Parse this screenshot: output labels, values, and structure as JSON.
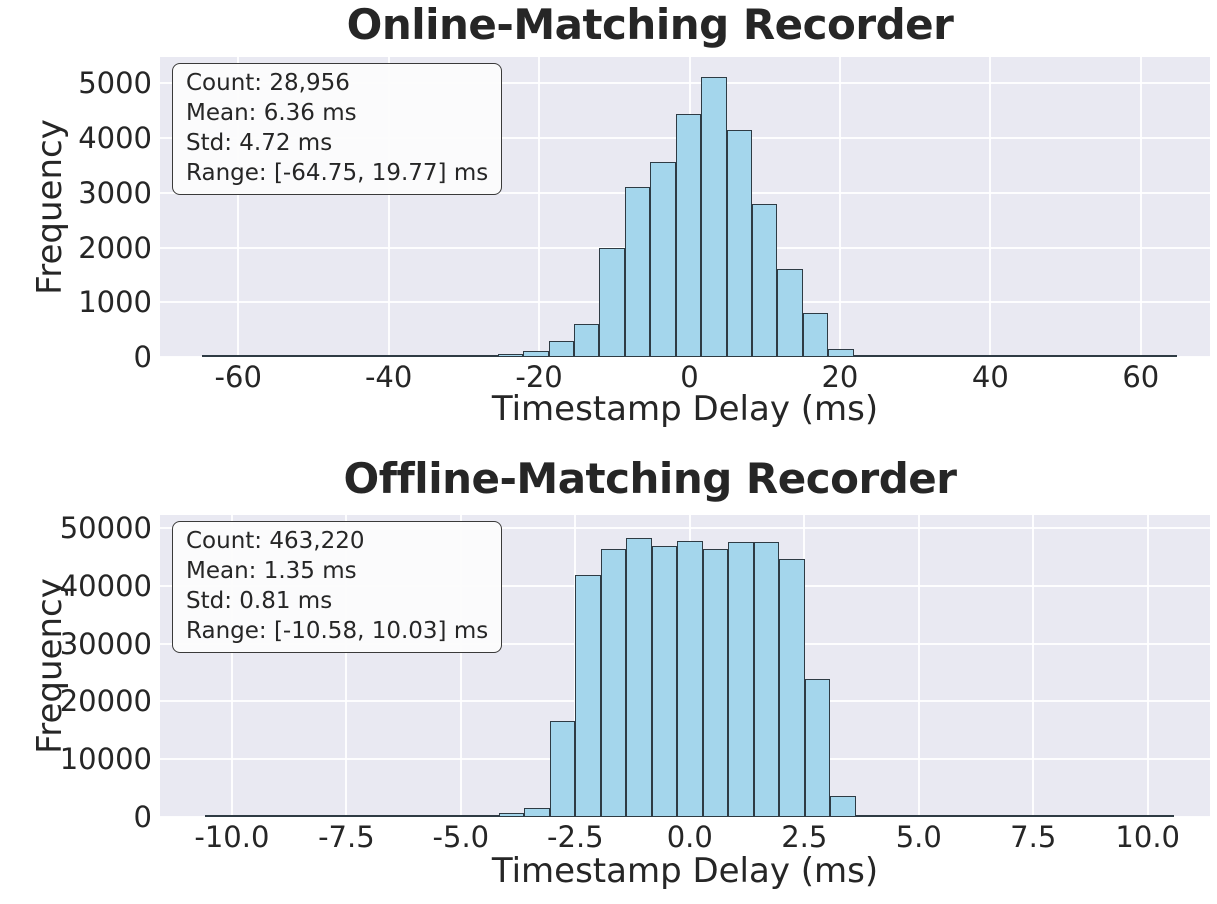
{
  "colors": {
    "bar_fill": "#a4d6ec",
    "bar_edge": "#2e3b44",
    "plot_background": "#e9e9f2",
    "gridline": "#ffffff",
    "text": "#262626",
    "stats_box_background": "#fcfcfc",
    "stats_box_border": "#3a3a3a",
    "figure_background": "#ffffff"
  },
  "chart_data": [
    {
      "type": "bar",
      "subtype": "histogram",
      "title": "Online-Matching Recorder",
      "xlabel": "Timestamp Delay (ms)",
      "ylabel": "Frequency",
      "stats": {
        "count": 28956,
        "mean_ms": 6.36,
        "std_ms": 4.72,
        "range_ms": [
          -64.75,
          19.77
        ]
      },
      "stats_text": [
        "Count: 28,956",
        "Mean: 6.36 ms",
        "Std: 4.72 ms",
        "Range: [-64.75, 19.77] ms"
      ],
      "xlim": [
        -70.4,
        69.2
      ],
      "ylim": [
        0,
        5480
      ],
      "xticks": [
        -60,
        -40,
        -20,
        0,
        20,
        40,
        60
      ],
      "xtick_labels": [
        "-60",
        "-40",
        "-20",
        "0",
        "20",
        "40",
        "60"
      ],
      "yticks": [
        0,
        1000,
        2000,
        3000,
        4000,
        5000
      ],
      "ytick_labels": [
        "0",
        "1000",
        "2000",
        "3000",
        "4000",
        "5000"
      ],
      "grid": true,
      "legend": false,
      "bin_width_ms": 3.38,
      "baseline_extent_ms": [
        -64.75,
        64.75
      ],
      "bars": [
        [
          -39.01,
          5
        ],
        [
          -35.63,
          12
        ],
        [
          -32.25,
          22
        ],
        [
          -28.87,
          35
        ],
        [
          -25.49,
          55
        ],
        [
          -22.11,
          110
        ],
        [
          -18.73,
          300
        ],
        [
          -15.35,
          600
        ],
        [
          -11.97,
          2000
        ],
        [
          -8.59,
          3100
        ],
        [
          -5.21,
          3560
        ],
        [
          -1.83,
          4430
        ],
        [
          1.55,
          5120
        ],
        [
          4.93,
          4150
        ],
        [
          8.31,
          2800
        ],
        [
          11.69,
          1600
        ],
        [
          15.07,
          800
        ],
        [
          18.45,
          150
        ]
      ]
    },
    {
      "type": "bar",
      "subtype": "histogram",
      "title": "Offline-Matching Recorder",
      "xlabel": "Timestamp Delay (ms)",
      "ylabel": "Frequency",
      "stats": {
        "count": 463220,
        "mean_ms": 1.35,
        "std_ms": 0.81,
        "range_ms": [
          -10.58,
          10.03
        ]
      },
      "stats_text": [
        "Count: 463,220",
        "Mean: 1.35 ms",
        "Std: 0.81 ms",
        "Range: [-10.58, 10.03] ms"
      ],
      "xlim": [
        -11.57,
        11.36
      ],
      "ylim": [
        0,
        52250
      ],
      "xticks": [
        -10,
        -7.5,
        -5,
        -2.5,
        0,
        2.5,
        5,
        7.5,
        10
      ],
      "xtick_labels": [
        "-10.0",
        "-7.5",
        "-5.0",
        "-2.5",
        "0.0",
        "2.5",
        "5.0",
        "7.5",
        "10.0"
      ],
      "yticks": [
        0,
        10000,
        20000,
        30000,
        40000,
        50000
      ],
      "ytick_labels": [
        "0",
        "10000",
        "20000",
        "30000",
        "40000",
        "50000"
      ],
      "grid": true,
      "legend": false,
      "bin_width_ms": 0.557,
      "baseline_extent_ms": [
        -10.58,
        10.58
      ],
      "bars": [
        [
          -4.17,
          700
        ],
        [
          -3.613,
          1550
        ],
        [
          -3.057,
          16600
        ],
        [
          -2.5,
          41800
        ],
        [
          -1.943,
          46300
        ],
        [
          -1.387,
          48200
        ],
        [
          -0.83,
          46900
        ],
        [
          -0.273,
          47700
        ],
        [
          0.283,
          46300
        ],
        [
          0.84,
          47500
        ],
        [
          1.397,
          47600
        ],
        [
          1.953,
          44600
        ],
        [
          2.51,
          23900
        ],
        [
          3.067,
          3700
        ],
        [
          3.623,
          340
        ]
      ]
    }
  ]
}
